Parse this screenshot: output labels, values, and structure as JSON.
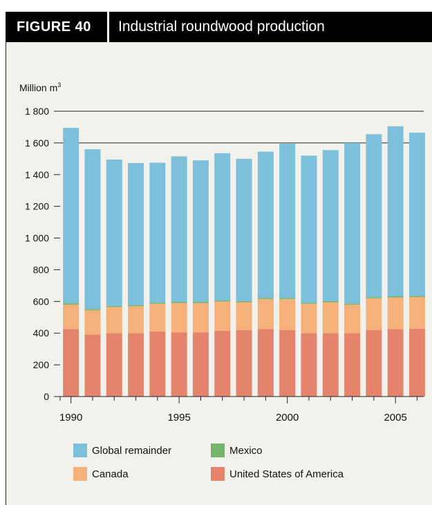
{
  "figure": {
    "label": "FIGURE 40",
    "title": "Industrial roundwood production"
  },
  "chart_data": {
    "type": "bar",
    "stacked": true,
    "title": "Industrial roundwood production",
    "ylabel": "Million m",
    "ylabel_sup": "3",
    "ylim": [
      0,
      1800
    ],
    "yticks": [
      0,
      200,
      400,
      600,
      800,
      1000,
      1200,
      1400,
      1600,
      1800
    ],
    "ytick_labels": [
      "0",
      "200",
      "400",
      "600",
      "800",
      "1 000",
      "1 200",
      "1 400",
      "1 600",
      "1 800"
    ],
    "categories": [
      "1990",
      "1991",
      "1992",
      "1993",
      "1994",
      "1995",
      "1996",
      "1997",
      "1998",
      "1999",
      "2000",
      "2001",
      "2002",
      "2003",
      "2004",
      "2005",
      "2006"
    ],
    "xtick_labels": [
      {
        "year": "1990",
        "label": "1990"
      },
      {
        "year": "1995",
        "label": "1995"
      },
      {
        "year": "2000",
        "label": "2000"
      },
      {
        "year": "2005",
        "label": "2005"
      }
    ],
    "gridlines": [
      1600,
      1800
    ],
    "legend_position": "bottom",
    "series": [
      {
        "name": "United States of America",
        "color": "#e5846c",
        "values": [
          425,
          390,
          400,
          400,
          410,
          405,
          405,
          415,
          420,
          425,
          420,
          400,
          400,
          400,
          420,
          425,
          428
        ]
      },
      {
        "name": "Canada",
        "color": "#f6b07a",
        "values": [
          155,
          155,
          165,
          170,
          175,
          185,
          185,
          185,
          175,
          190,
          195,
          185,
          195,
          180,
          200,
          200,
          200
        ]
      },
      {
        "name": "Mexico",
        "color": "#73b66b",
        "values": [
          8,
          7,
          7,
          7,
          7,
          7,
          7,
          7,
          7,
          7,
          7,
          7,
          7,
          7,
          7,
          7,
          7
        ]
      },
      {
        "name": "Global remainder",
        "color": "#7cc0dc",
        "values": [
          1107,
          1008,
          923,
          896,
          883,
          918,
          893,
          928,
          898,
          923,
          973,
          928,
          953,
          1013,
          1028,
          1073,
          1030
        ]
      }
    ],
    "legend": [
      {
        "label": "Global remainder",
        "color": "#7cc0dc"
      },
      {
        "label": "Mexico",
        "color": "#73b66b"
      },
      {
        "label": "Canada",
        "color": "#f6b07a"
      },
      {
        "label": "United States of America",
        "color": "#e5846c"
      }
    ]
  }
}
